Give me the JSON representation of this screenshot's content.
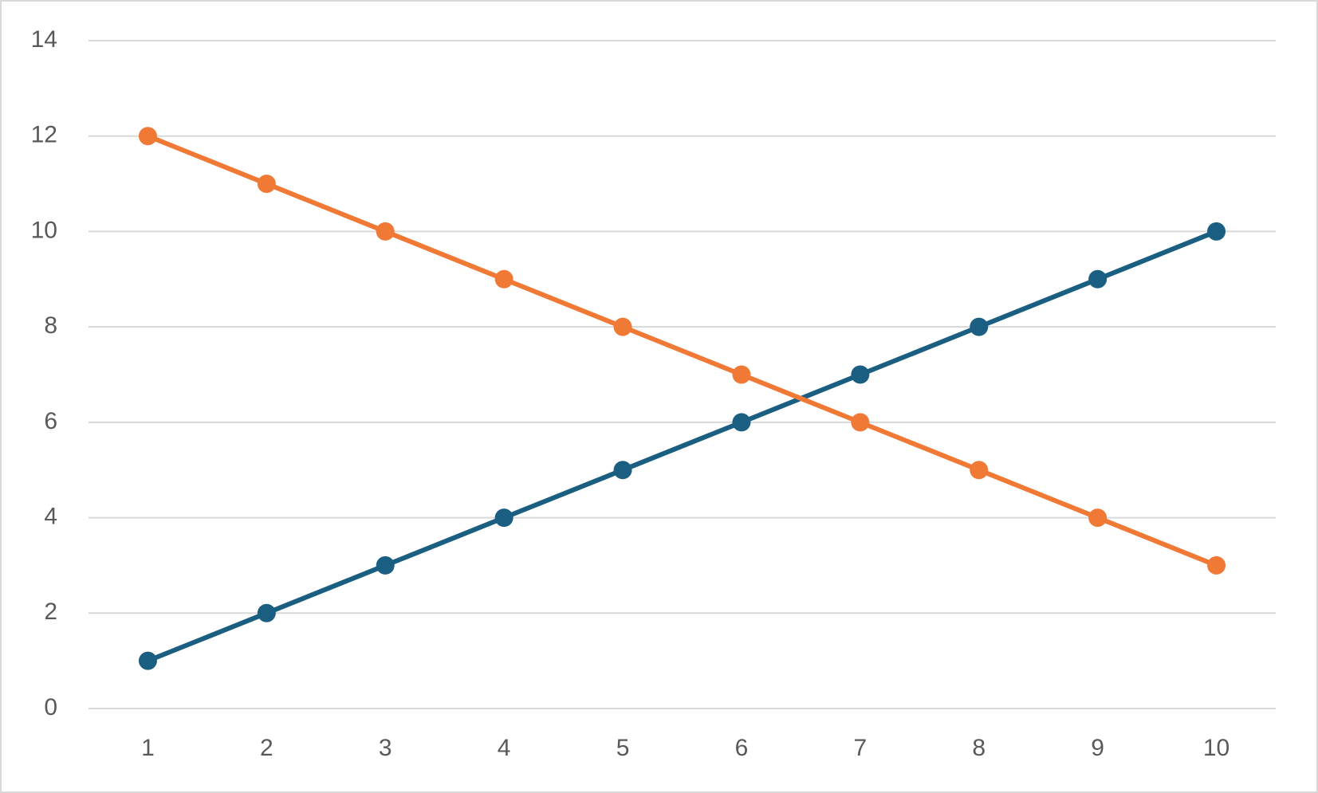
{
  "chart_data": {
    "type": "line",
    "categories": [
      "1",
      "2",
      "3",
      "4",
      "5",
      "6",
      "7",
      "8",
      "9",
      "10"
    ],
    "series": [
      {
        "color": "#1a5f82",
        "values": [
          1,
          2,
          3,
          4,
          5,
          6,
          7,
          8,
          9,
          10
        ]
      },
      {
        "color": "#f07a35",
        "values": [
          12,
          11,
          10,
          9,
          8,
          7,
          6,
          5,
          4,
          3
        ]
      }
    ],
    "ylim": [
      0,
      14
    ],
    "yticks": [
      0,
      2,
      4,
      6,
      8,
      10,
      12,
      14
    ],
    "grid": true
  }
}
